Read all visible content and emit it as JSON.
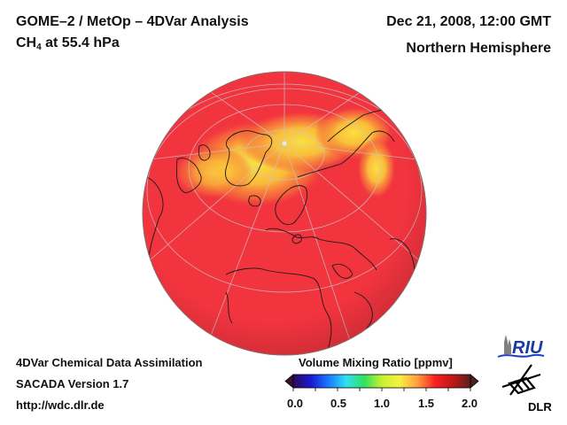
{
  "header": {
    "title_line1": "GOME–2 / MetOp – 4DVar Analysis",
    "species": "CH",
    "species_subscript": "4",
    "pressure_text": " at 55.4 hPa",
    "date": "Dec 21, 2008, 12:00 GMT",
    "region": "Northern Hemisphere"
  },
  "footer": {
    "line1": "4DVar Chemical Data Assimilation",
    "line2": "SACADA Version 1.7",
    "line3": "http://wdc.dlr.de"
  },
  "colorbar": {
    "title": "Volume Mixing Ratio [ppmv]",
    "min": 0.0,
    "max": 2.0,
    "tick_labels": [
      "0.0",
      "0.5",
      "1.0",
      "1.5",
      "2.0"
    ],
    "tick_values": [
      0.0,
      0.5,
      1.0,
      1.5,
      2.0
    ],
    "colors": [
      "#2a0a5a",
      "#1a1ad0",
      "#1a7aff",
      "#30e0f0",
      "#30e060",
      "#c8f030",
      "#f8f040",
      "#ffa040",
      "#f82020",
      "#c01818",
      "#5a2020"
    ]
  },
  "map": {
    "projection": "orthographic",
    "field_colors": {
      "background": "#f2343f",
      "high": "#fbd33c",
      "mid": "#f87a3a"
    }
  },
  "logos": {
    "riu": "RIU",
    "dlr": "DLR"
  }
}
